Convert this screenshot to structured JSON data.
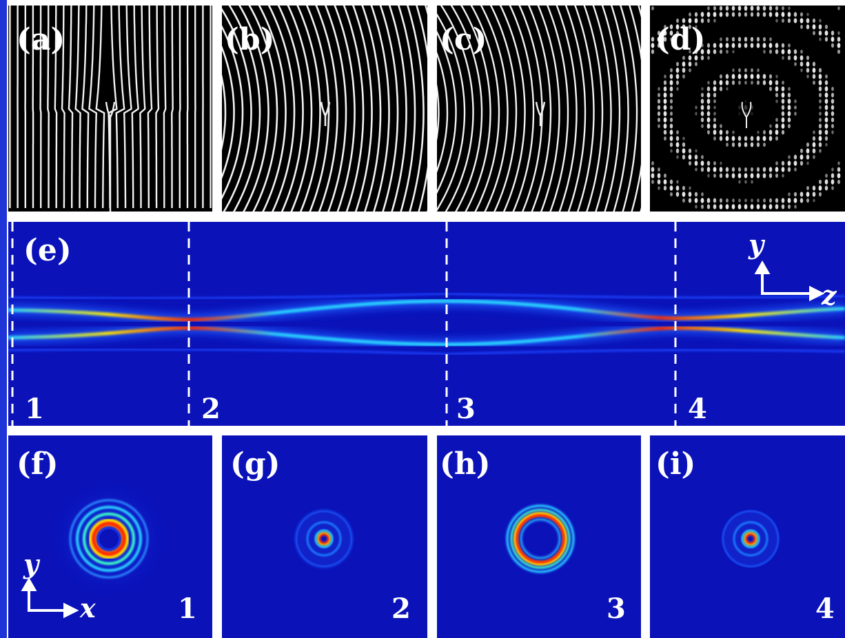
{
  "panels": {
    "a": {
      "label": "(a)"
    },
    "b": {
      "label": "(b)"
    },
    "c": {
      "label": "(c)"
    },
    "d": {
      "label": "(d)"
    },
    "e": {
      "label": "(e)",
      "markers": [
        "1",
        "2",
        "3",
        "4"
      ],
      "axes": {
        "vertical": "y",
        "horizontal": "z"
      }
    },
    "f": {
      "label": "(f)",
      "number": "1",
      "axes": {
        "vertical": "y",
        "horizontal": "x"
      }
    },
    "g": {
      "label": "(g)",
      "number": "2"
    },
    "h": {
      "label": "(h)",
      "number": "3"
    },
    "i": {
      "label": "(i)",
      "number": "4"
    }
  },
  "colors": {
    "background": "#0a12b8",
    "frame": "#ffffff",
    "side_bar": "#1e34d6",
    "hot": "#ff2a00",
    "warm": "#ffe600",
    "cool": "#29d3ff"
  },
  "icons": [
    "arrow-up-icon",
    "arrow-right-icon"
  ]
}
